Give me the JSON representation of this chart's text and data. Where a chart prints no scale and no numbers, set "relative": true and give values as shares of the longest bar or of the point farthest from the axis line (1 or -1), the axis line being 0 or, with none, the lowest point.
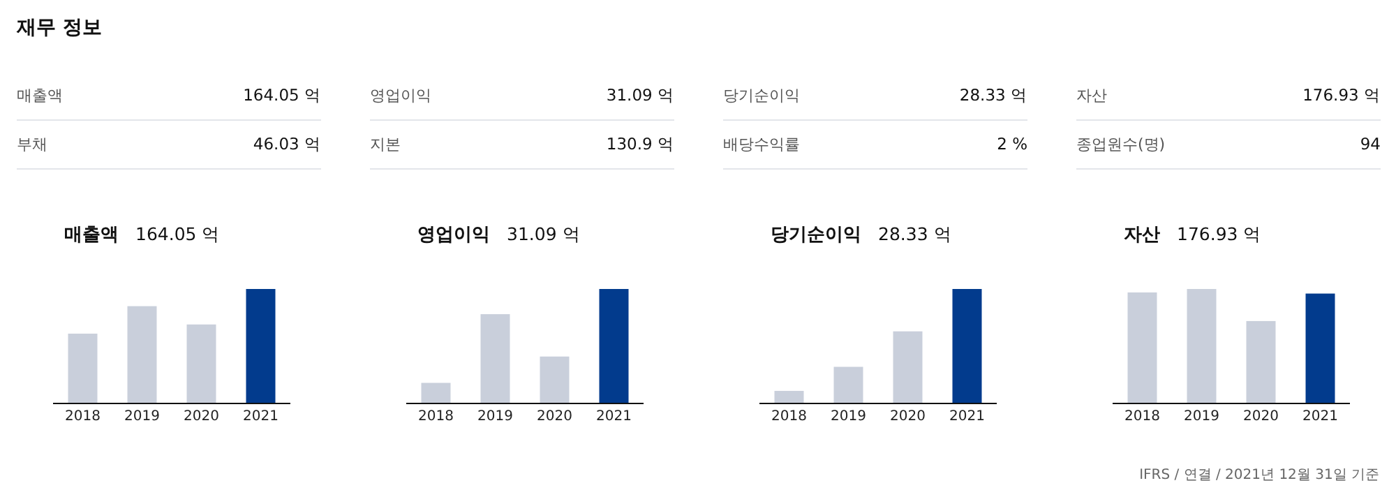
{
  "chart_data": [
    {
      "type": "other",
      "title": "재무 정보",
      "categories": [
        "매출액",
        "영업이익",
        "당기순이익",
        "자산",
        "부채",
        "지본",
        "배당수익률",
        "종업원수(명)"
      ],
      "value_labels": [
        "164.05 억",
        "31.09 억",
        "28.33 억",
        "176.93 억",
        "46.03 억",
        "130.9 억",
        "2 %",
        "94"
      ],
      "annotations": [
        "IFRS / 연결 / 2021년 12월 31일 기준"
      ]
    },
    {
      "type": "bar",
      "relative": true,
      "title": "매출액",
      "subtitle": "164.05 억",
      "categories": [
        "2018",
        "2019",
        "2020",
        "2021"
      ],
      "values": [
        0.61,
        0.85,
        0.69,
        1
      ],
      "colors": [
        "#c9cfdb",
        "#c9cfdb",
        "#c9cfdb",
        "#023b8d"
      ]
    },
    {
      "type": "bar",
      "relative": true,
      "title": "영업이익",
      "subtitle": "31.09 억",
      "categories": [
        "2018",
        "2019",
        "2020",
        "2021"
      ],
      "values": [
        0.18,
        0.78,
        0.41,
        1
      ],
      "colors": [
        "#c9cfdb",
        "#c9cfdb",
        "#c9cfdb",
        "#023b8d"
      ]
    },
    {
      "type": "bar",
      "relative": true,
      "title": "당기순이익",
      "subtitle": "28.33 억",
      "categories": [
        "2018",
        "2019",
        "2020",
        "2021"
      ],
      "values": [
        0.11,
        0.32,
        0.63,
        1
      ],
      "colors": [
        "#c9cfdb",
        "#c9cfdb",
        "#c9cfdb",
        "#023b8d"
      ]
    },
    {
      "type": "bar",
      "relative": true,
      "title": "자산",
      "subtitle": "176.93 억",
      "categories": [
        "2018",
        "2019",
        "2020",
        "2021"
      ],
      "values": [
        0.97,
        1,
        0.72,
        0.96
      ],
      "colors": [
        "#c9cfdb",
        "#c9cfdb",
        "#c9cfdb",
        "#023b8d"
      ]
    }
  ]
}
